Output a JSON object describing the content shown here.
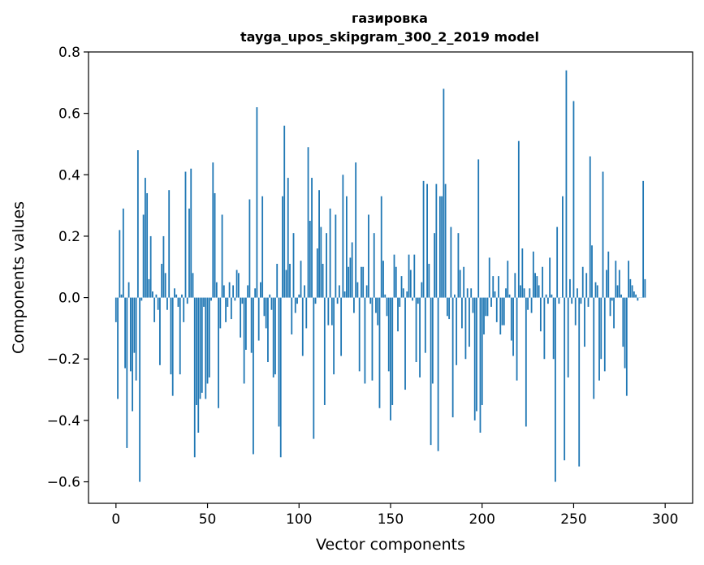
{
  "chart_data": {
    "type": "bar",
    "title": "газировка",
    "subtitle": "tayga_upos_skipgram_300_2_2019 model",
    "xlabel": "Vector components",
    "ylabel": "Components values",
    "xlim": [
      -15,
      315
    ],
    "ylim": [
      -0.67,
      0.8
    ],
    "x_ticks": [
      0,
      50,
      100,
      150,
      200,
      250,
      300
    ],
    "x_tick_labels": [
      "0",
      "50",
      "100",
      "150",
      "200",
      "250",
      "300"
    ],
    "y_ticks": [
      -0.6,
      -0.4,
      -0.2,
      0.0,
      0.2,
      0.4,
      0.6,
      0.8
    ],
    "y_tick_labels": [
      "−0.6",
      "−0.4",
      "−0.2",
      "0.0",
      "0.2",
      "0.4",
      "0.6",
      "0.8"
    ],
    "bar_color": "#1f77b4",
    "grid": false,
    "values": [
      -0.08,
      -0.33,
      0.22,
      0.01,
      0.29,
      -0.23,
      -0.49,
      0.05,
      -0.24,
      -0.37,
      -0.18,
      -0.27,
      0.48,
      -0.6,
      -0.01,
      0.27,
      0.39,
      0.34,
      0.06,
      0.2,
      0.02,
      -0.08,
      0.01,
      -0.04,
      -0.22,
      0.11,
      0.2,
      0.08,
      -0.04,
      0.35,
      -0.25,
      -0.32,
      0.03,
      0.01,
      -0.03,
      -0.25,
      0.01,
      -0.08,
      0.41,
      -0.02,
      0.29,
      0.42,
      0.08,
      -0.52,
      -0.35,
      -0.44,
      -0.33,
      -0.31,
      -0.03,
      -0.33,
      -0.28,
      -0.26,
      -0.01,
      0.44,
      0.34,
      0.05,
      -0.36,
      -0.1,
      0.27,
      0.04,
      -0.08,
      -0.03,
      0.05,
      -0.07,
      0.04,
      -0.01,
      0.09,
      0.08,
      -0.13,
      -0.02,
      -0.28,
      -0.17,
      0.04,
      0.32,
      -0.18,
      -0.51,
      0.03,
      0.62,
      -0.14,
      0.05,
      0.33,
      -0.06,
      -0.1,
      -0.21,
      0.01,
      -0.04,
      -0.26,
      -0.25,
      0.11,
      -0.42,
      -0.52,
      0.33,
      0.56,
      0.09,
      0.39,
      0.11,
      -0.12,
      0.21,
      -0.05,
      -0.02,
      0.01,
      0.12,
      -0.19,
      0.04,
      -0.1,
      0.49,
      0.25,
      0.39,
      -0.46,
      -0.02,
      0.16,
      0.35,
      0.23,
      0.11,
      -0.35,
      0.21,
      -0.09,
      0.29,
      -0.09,
      -0.25,
      0.27,
      -0.02,
      0.04,
      -0.19,
      0.4,
      0.02,
      0.33,
      0.1,
      0.13,
      0.18,
      -0.05,
      0.44,
      0.05,
      -0.24,
      0.1,
      0.1,
      -0.28,
      0.04,
      0.27,
      -0.02,
      -0.27,
      0.21,
      -0.05,
      -0.09,
      -0.36,
      0.33,
      0.12,
      0.01,
      -0.06,
      -0.24,
      -0.4,
      -0.35,
      0.14,
      0.1,
      -0.11,
      -0.03,
      0.07,
      0.03,
      -0.3,
      0.02,
      0.14,
      0.09,
      -0.01,
      0.14,
      -0.21,
      -0.02,
      -0.26,
      0.05,
      0.38,
      -0.18,
      0.37,
      0.11,
      -0.48,
      -0.28,
      0.21,
      0.37,
      -0.5,
      0.33,
      0.33,
      0.68,
      0.37,
      -0.06,
      -0.07,
      0.23,
      -0.39,
      0.01,
      -0.22,
      0.21,
      0.09,
      -0.1,
      0.1,
      -0.2,
      0.03,
      -0.16,
      0.03,
      -0.05,
      -0.4,
      -0.37,
      0.45,
      -0.44,
      -0.35,
      -0.12,
      -0.06,
      -0.06,
      0.13,
      -0.03,
      0.07,
      0.02,
      -0.08,
      0.07,
      -0.12,
      -0.09,
      -0.09,
      0.03,
      0.12,
      0.01,
      -0.14,
      -0.19,
      0.08,
      -0.27,
      0.51,
      0.04,
      0.16,
      0.03,
      -0.42,
      -0.04,
      0.03,
      -0.05,
      0.15,
      0.08,
      0.07,
      0.04,
      -0.11,
      0.1,
      -0.2,
      0.01,
      -0.02,
      0.13,
      0.01,
      -0.2,
      -0.6,
      0.23,
      -0.02,
      0.0,
      0.33,
      -0.53,
      0.74,
      -0.26,
      0.06,
      -0.02,
      0.64,
      -0.09,
      0.03,
      -0.55,
      -0.02,
      0.1,
      -0.16,
      0.08,
      -0.03,
      0.46,
      0.17,
      -0.33,
      0.05,
      0.04,
      -0.27,
      -0.2,
      0.41,
      -0.24,
      0.09,
      0.15,
      -0.06,
      -0.01,
      -0.1,
      0.12,
      0.04,
      0.09,
      0.01,
      -0.16,
      -0.23,
      -0.32,
      0.12,
      0.06,
      0.04,
      0.02,
      0.01,
      -0.01,
      0.0,
      0.0,
      0.38,
      0.06
    ]
  }
}
